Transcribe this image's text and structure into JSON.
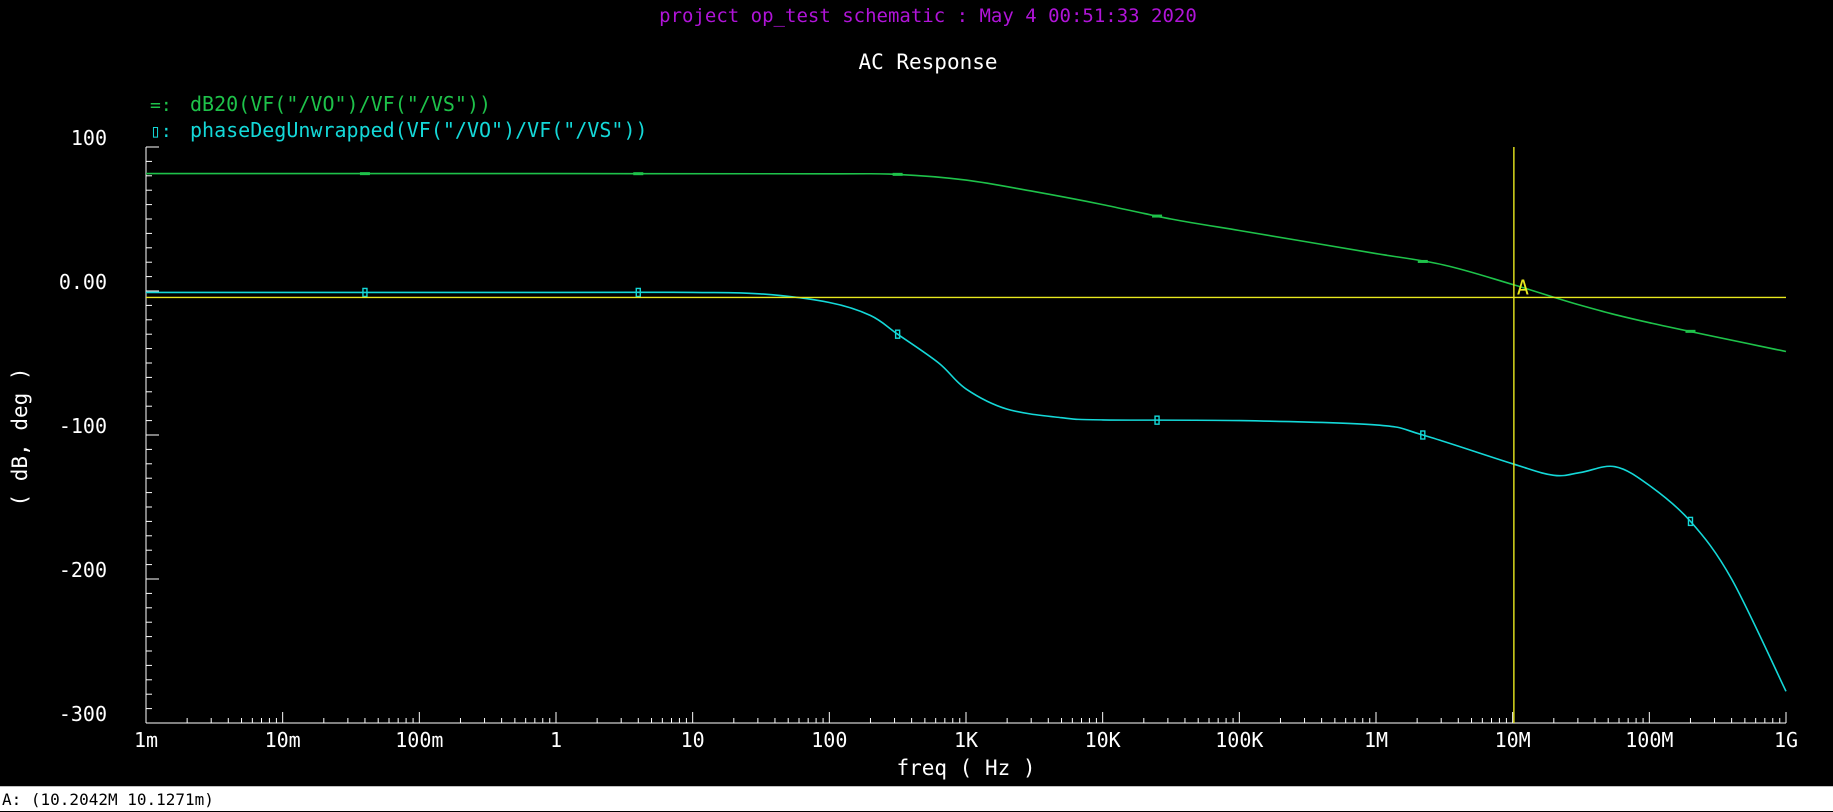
{
  "header": {
    "project_line": "project op_test schematic : May  4 00:51:33 2020",
    "project_color": "#b014d8"
  },
  "colors": {
    "background": "#000000",
    "text": "#ffffff",
    "series_gain": "#1ec24a",
    "series_phase": "#14d8d8",
    "cursor": "#e8e81e"
  },
  "chart_data": {
    "type": "line",
    "title": "AC Response",
    "xlabel": "freq ( Hz )",
    "ylabel": "( dB, deg )",
    "x_scale": "log",
    "xlim": [
      0.001,
      1000000000
    ],
    "ylim": [
      -300,
      100
    ],
    "x_ticks": [
      {
        "value": 0.001,
        "label": "1m"
      },
      {
        "value": 0.01,
        "label": "10m"
      },
      {
        "value": 0.1,
        "label": "100m"
      },
      {
        "value": 1,
        "label": "1"
      },
      {
        "value": 10,
        "label": "10"
      },
      {
        "value": 100,
        "label": "100"
      },
      {
        "value": 1000,
        "label": "1K"
      },
      {
        "value": 10000,
        "label": "10K"
      },
      {
        "value": 100000,
        "label": "100K"
      },
      {
        "value": 1000000,
        "label": "1M"
      },
      {
        "value": 10000000,
        "label": "10M"
      },
      {
        "value": 100000000,
        "label": "100M"
      },
      {
        "value": 1000000000,
        "label": "1G"
      }
    ],
    "y_ticks": [
      {
        "value": 100,
        "label": "100"
      },
      {
        "value": 0,
        "label": "0.00"
      },
      {
        "value": -100,
        "label": "-100"
      },
      {
        "value": -200,
        "label": "-200"
      },
      {
        "value": -300,
        "label": "-300"
      }
    ],
    "legend_placement": "top-left",
    "series": [
      {
        "name": "dB20(VF(\"/VO\")/VF(\"/VS\"))",
        "legend_marker": "=:",
        "marker": "bar",
        "x": [
          0.001,
          1,
          100,
          316,
          1000,
          3162,
          10000,
          31620,
          100000,
          316200,
          1000000,
          3162000,
          10000000,
          31620000,
          100000000,
          1000000000
        ],
        "y": [
          81.5,
          81.5,
          81.4,
          81,
          77,
          69,
          60,
          50,
          42,
          34,
          26,
          18,
          4.5,
          -10,
          -22,
          -42
        ],
        "marker_x": [
          0.04,
          4,
          316,
          25000,
          2200000,
          200000000
        ]
      },
      {
        "name": "phaseDegUnwrapped(VF(\"/VO\")/VF(\"/VS\"))",
        "legend_marker": "▯:",
        "marker": "box",
        "x": [
          0.001,
          1,
          10,
          31.6,
          100,
          200,
          316,
          631,
          1000,
          2000,
          5000,
          10000,
          100000,
          1000000,
          2200000,
          10000000,
          20000000,
          31600000,
          56000000,
          100000000,
          200000000,
          400000000,
          1000000000
        ],
        "y": [
          -1,
          -1,
          -1,
          -2,
          -8,
          -17,
          -30,
          -50,
          -68,
          -82,
          -88,
          -89.5,
          -90,
          -93,
          -100,
          -120,
          -128,
          -126,
          -122,
          -135,
          -160,
          -200,
          -278
        ],
        "marker_x": [
          0.04,
          4,
          316,
          25000,
          2200000,
          200000000
        ]
      }
    ],
    "cursor": {
      "label": "A",
      "x": 10204200,
      "y": 0.0101271,
      "readout": "A: (10.2042M 10.1271m)"
    }
  }
}
